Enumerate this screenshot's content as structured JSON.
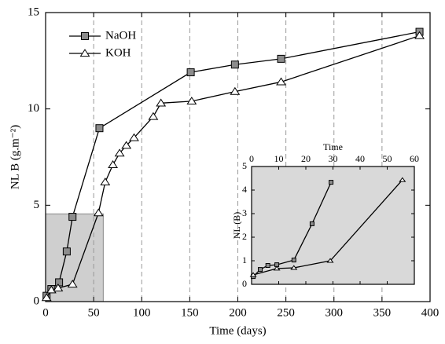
{
  "chart_data": [
    {
      "type": "line",
      "xlabel": "Time (days)",
      "ylabel": "NL B (g.m⁻²)",
      "xlim": [
        0,
        400
      ],
      "ylim": [
        0,
        15
      ],
      "xticks": [
        0,
        50,
        100,
        150,
        200,
        250,
        300,
        350,
        400
      ],
      "yticks": [
        0,
        5,
        10,
        15
      ],
      "grid": true,
      "legend": "upper left",
      "series": [
        {
          "name": "NaOH",
          "color": "#000000",
          "marker": "square",
          "fill": "#8c8c8c",
          "x": [
            1,
            6,
            14,
            22,
            28,
            56,
            151,
            197,
            245,
            389
          ],
          "values": [
            0.3,
            0.65,
            1.0,
            2.6,
            4.4,
            9.0,
            11.9,
            12.3,
            12.6,
            14.0
          ]
        },
        {
          "name": "KOH",
          "color": "#000000",
          "marker": "triangle",
          "fill": "#ffffff",
          "x": [
            1,
            6,
            13,
            28,
            55,
            62,
            70,
            77,
            84,
            92,
            112,
            120,
            152,
            197,
            245,
            389
          ],
          "values": [
            0.2,
            0.6,
            0.7,
            0.9,
            4.6,
            6.2,
            7.1,
            7.7,
            8.1,
            8.5,
            9.6,
            10.3,
            10.4,
            10.9,
            11.4,
            13.8
          ]
        }
      ]
    },
    {
      "type": "line",
      "xlabel": "Time",
      "ylabel": "NL (B)",
      "xlim": [
        0,
        60
      ],
      "ylim": [
        0,
        5
      ],
      "xticks": [
        0,
        10,
        20,
        30,
        40,
        50,
        60
      ],
      "yticks": [
        0,
        1,
        2,
        3,
        4,
        5
      ],
      "xaxis_position": "top",
      "background": "#d9d9d9",
      "series": [
        {
          "name": "NaOH",
          "color": "#000000",
          "marker": "square",
          "fill": "#8c8c8c",
          "x": [
            0.6,
            3.2,
            6,
            9.3,
            15.6,
            22.3,
            29.3
          ],
          "values": [
            0.33,
            0.63,
            0.8,
            0.83,
            1.03,
            2.57,
            4.33
          ]
        },
        {
          "name": "KOH",
          "color": "#000000",
          "marker": "triangle",
          "fill": "#ffffff",
          "x": [
            0.6,
            9.3,
            15.6,
            29,
            55.6
          ],
          "values": [
            0.4,
            0.67,
            0.7,
            1.0,
            4.43
          ]
        }
      ]
    }
  ]
}
